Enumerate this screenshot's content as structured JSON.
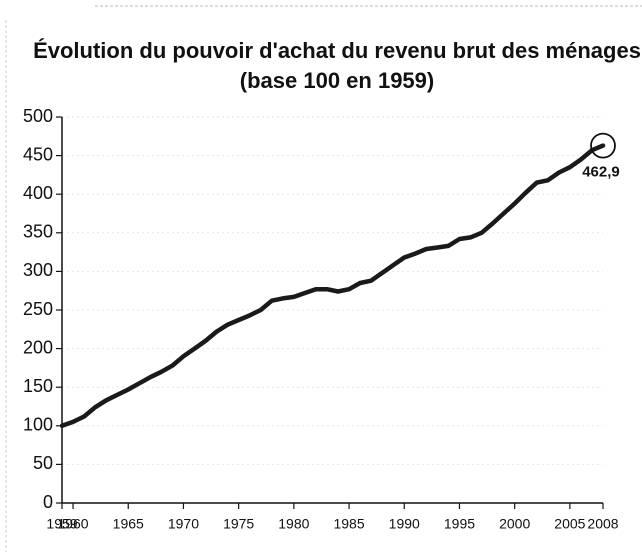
{
  "chart_data": {
    "type": "line",
    "title": "Évolution du pouvoir d'achat du revenu brut des ménages",
    "subtitle": "(base 100 en 1959)",
    "x": [
      1959,
      1960,
      1961,
      1962,
      1963,
      1964,
      1965,
      1966,
      1967,
      1968,
      1969,
      1970,
      1971,
      1972,
      1973,
      1974,
      1975,
      1976,
      1977,
      1978,
      1979,
      1980,
      1981,
      1982,
      1983,
      1984,
      1985,
      1986,
      1987,
      1988,
      1989,
      1990,
      1991,
      1992,
      1993,
      1994,
      1995,
      1996,
      1997,
      1998,
      1999,
      2000,
      2001,
      2002,
      2003,
      2004,
      2005,
      2006,
      2007,
      2008
    ],
    "series": [
      {
        "color": "#1a1a1a",
        "values": [
          100,
          105,
          112,
          124,
          133,
          140,
          147,
          155,
          163,
          170,
          178,
          190,
          200,
          210,
          222,
          231,
          237,
          243,
          250,
          262,
          265,
          267,
          272,
          277,
          277,
          274,
          277,
          285,
          288,
          298,
          308,
          318,
          323,
          329,
          331,
          333,
          342,
          344,
          350,
          362,
          375,
          388,
          402,
          415,
          418,
          428,
          435,
          445,
          457,
          462.9
        ]
      }
    ],
    "annotation": "462,9",
    "xlim": [
      1959,
      2008
    ],
    "xticks": [
      1959,
      1960,
      1965,
      1970,
      1975,
      1980,
      1985,
      1990,
      1995,
      2000,
      2005,
      2008
    ],
    "ylim": [
      0,
      500
    ],
    "yticks": [
      0,
      50,
      100,
      150,
      200,
      250,
      300,
      350,
      400,
      450,
      500
    ],
    "grid": true
  }
}
